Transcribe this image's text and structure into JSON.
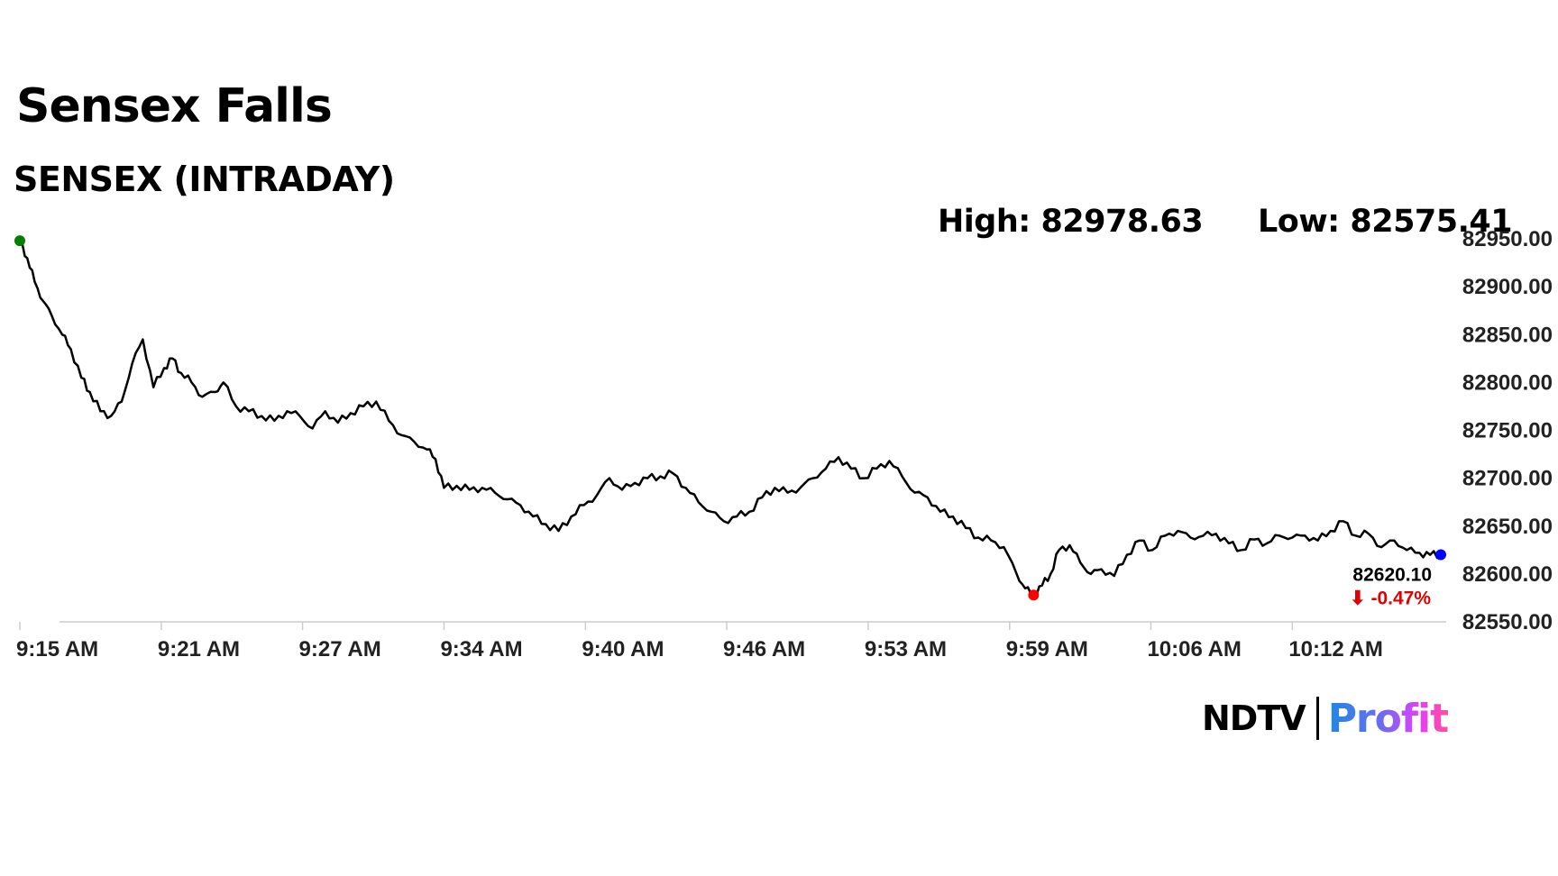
{
  "header": {
    "title": "Sensex Falls",
    "subtitle": "SENSEX (INTRADAY)",
    "high": "High: 82978.63",
    "low": "Low: 82575.41"
  },
  "last_price": {
    "value": "82620.10",
    "change": "⬇ -0.47%"
  },
  "logo": {
    "ndtv": "NDTV",
    "profit": "Profit"
  },
  "colors": {
    "line": "#000000",
    "start_marker": "#008000",
    "low_marker": "#ff0000",
    "last_marker": "#0000ff",
    "change_negative": "#e00000",
    "axis": "#cccccc",
    "text": "#000000"
  },
  "chart_data": {
    "type": "line",
    "title": "",
    "xlabel": "",
    "ylabel": "",
    "ylim": [
      82550,
      82950
    ],
    "y_ticks": [
      82550,
      82600,
      82650,
      82700,
      82750,
      82800,
      82850,
      82900,
      82950
    ],
    "y_tick_labels": [
      "82550.00",
      "82600.00",
      "82650.00",
      "82700.00",
      "82750.00",
      "82800.00",
      "82850.00",
      "82900.00",
      "82950.00"
    ],
    "y_axis_position": "right",
    "x_range_minutes": [
      0,
      67
    ],
    "x_ticks": [
      0,
      6.67,
      13.33,
      20,
      26.67,
      33.33,
      40,
      46.67,
      53.33,
      60
    ],
    "x_tick_labels": [
      "9:15 AM",
      "9:21 AM",
      "9:27 AM",
      "9:34 AM",
      "9:40 AM",
      "9:46 AM",
      "9:53 AM",
      "9:59 AM",
      "10:06 AM",
      "10:12 AM"
    ],
    "grid": false,
    "legend": "none",
    "series": [
      {
        "x": [
          0,
          0.35,
          0.7,
          1.1,
          1.5,
          2,
          2.4,
          2.9,
          3.3,
          3.8,
          4.3,
          4.8,
          5.3,
          5.8,
          6.3,
          6.8,
          7.2,
          7.6,
          8.1,
          8.6,
          9.2,
          9.6,
          10.2,
          10.8,
          11.4,
          12,
          12.6,
          13.2,
          13.8,
          14.4,
          15,
          15.6,
          16.2,
          16.8,
          17.4,
          18,
          18.6,
          19.2,
          19.6,
          20,
          20.6,
          21.2,
          21.8,
          22.4,
          23,
          23.6,
          24.2,
          24.8,
          25.4,
          26,
          26.6,
          27.2,
          27.8,
          28.4,
          29,
          29.6,
          30.2,
          30.8,
          31.4,
          32,
          32.6,
          33.2,
          33.8,
          34.4,
          35,
          35.6,
          36.2,
          36.8,
          37.4,
          38,
          38.6,
          39.2,
          39.8,
          40.4,
          41,
          41.6,
          42.2,
          42.8,
          43.4,
          44,
          44.6,
          45.2,
          45.8,
          46.4,
          47,
          47.4,
          47.8,
          48.2,
          48.6,
          49,
          49.5,
          50,
          50.5,
          51,
          51.6,
          52.2,
          52.8,
          53.4,
          54,
          54.6,
          55.2,
          55.8,
          56.4,
          57,
          57.6,
          58.2,
          58.8,
          59.4,
          60,
          60.6,
          61.2,
          61.8,
          62.4,
          63,
          63.6,
          64.2,
          64.8,
          65.4,
          66,
          66.5,
          67
        ],
        "y": [
          82948,
          82930,
          82905,
          82885,
          82870,
          82850,
          82835,
          82805,
          82790,
          82770,
          82765,
          82780,
          82820,
          82845,
          82795,
          82815,
          82825,
          82810,
          82800,
          82785,
          82790,
          82800,
          82775,
          82770,
          82765,
          82760,
          82770,
          82765,
          82752,
          82770,
          82758,
          82768,
          82775,
          82780,
          82760,
          82745,
          82738,
          82730,
          82720,
          82690,
          82692,
          82688,
          82690,
          82685,
          82678,
          82672,
          82660,
          82652,
          82645,
          82660,
          82672,
          82682,
          82700,
          82688,
          82695,
          82700,
          82702,
          82705,
          82690,
          82675,
          82665,
          82655,
          82660,
          82665,
          82680,
          82690,
          82685,
          82690,
          82700,
          82710,
          82722,
          82710,
          82700,
          82710,
          82718,
          82702,
          82685,
          82680,
          82665,
          82660,
          82648,
          82638,
          82635,
          82628,
          82600,
          82585,
          82578,
          82588,
          82600,
          82625,
          82630,
          82612,
          82600,
          82605,
          82598,
          82620,
          82635,
          82625,
          82640,
          82645,
          82638,
          82640,
          82642,
          82632,
          82625,
          82636,
          82632,
          82640,
          82638,
          82640,
          82635,
          82645,
          82655,
          82640,
          82642,
          82628,
          82635,
          82625,
          82622,
          82620,
          82620
        ]
      }
    ],
    "markers": [
      {
        "name": "start",
        "x": 0,
        "y": 82948
      },
      {
        "name": "low",
        "x": 47.8,
        "y": 82578
      },
      {
        "name": "last",
        "x": 67,
        "y": 82620.1
      }
    ]
  }
}
